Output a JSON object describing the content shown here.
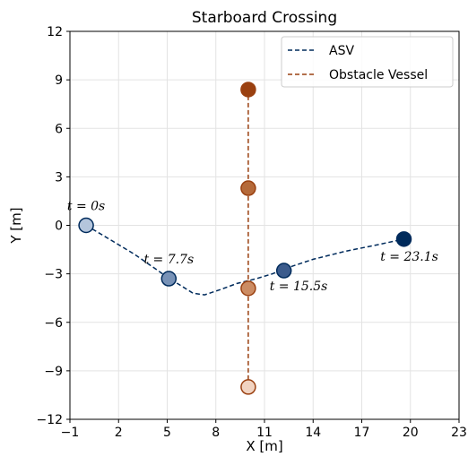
{
  "chart_data": {
    "type": "line",
    "title": "Starboard Crossing",
    "xlabel": "X [m]",
    "ylabel": "Y [m]",
    "xlim": [
      -1,
      23
    ],
    "ylim": [
      -12,
      12
    ],
    "xticks": [
      -1,
      2,
      5,
      8,
      11,
      14,
      17,
      20,
      23
    ],
    "yticks": [
      -12,
      -9,
      -6,
      -3,
      0,
      3,
      6,
      9,
      12
    ],
    "grid": true,
    "legend": "top-right",
    "series": [
      {
        "name": "ASV",
        "color": "#002b5c",
        "line_style": "dashed",
        "path": [
          {
            "x": 0,
            "y": 0
          },
          {
            "x": 1,
            "y": -0.6
          },
          {
            "x": 2,
            "y": -1.2
          },
          {
            "x": 3,
            "y": -1.8
          },
          {
            "x": 4,
            "y": -2.5
          },
          {
            "x": 5,
            "y": -3.2
          },
          {
            "x": 5.8,
            "y": -3.7
          },
          {
            "x": 6.6,
            "y": -4.2
          },
          {
            "x": 7.3,
            "y": -4.3
          },
          {
            "x": 8.2,
            "y": -4.0
          },
          {
            "x": 9.3,
            "y": -3.6
          },
          {
            "x": 10.5,
            "y": -3.3
          },
          {
            "x": 11.5,
            "y": -3.0
          },
          {
            "x": 12.2,
            "y": -2.7
          },
          {
            "x": 14,
            "y": -2.1
          },
          {
            "x": 16,
            "y": -1.6
          },
          {
            "x": 18,
            "y": -1.2
          },
          {
            "x": 19.6,
            "y": -0.85
          }
        ],
        "markers": [
          {
            "x": 0,
            "y": 0,
            "t": "t = 0s",
            "fill": "#b4c5dc"
          },
          {
            "x": 5.1,
            "y": -3.3,
            "t": "t = 7.7s",
            "fill": "#7892b7"
          },
          {
            "x": 12.2,
            "y": -2.8,
            "t": "t = 15.5s",
            "fill": "#3b5b8c"
          },
          {
            "x": 19.6,
            "y": -0.85,
            "t": "t = 23.1s",
            "fill": "#002b5c"
          }
        ]
      },
      {
        "name": "Obstacle Vessel",
        "color": "#9a4010",
        "line_style": "dashed",
        "path": [
          {
            "x": 10,
            "y": -10
          },
          {
            "x": 10,
            "y": 8.4
          }
        ],
        "markers": [
          {
            "x": 10,
            "y": -10,
            "fill": "#f1d3c1"
          },
          {
            "x": 10,
            "y": -3.9,
            "fill": "#cc8c63"
          },
          {
            "x": 10,
            "y": 2.3,
            "fill": "#b56a3a"
          },
          {
            "x": 10,
            "y": 8.4,
            "fill": "#9a4010"
          }
        ]
      }
    ]
  }
}
